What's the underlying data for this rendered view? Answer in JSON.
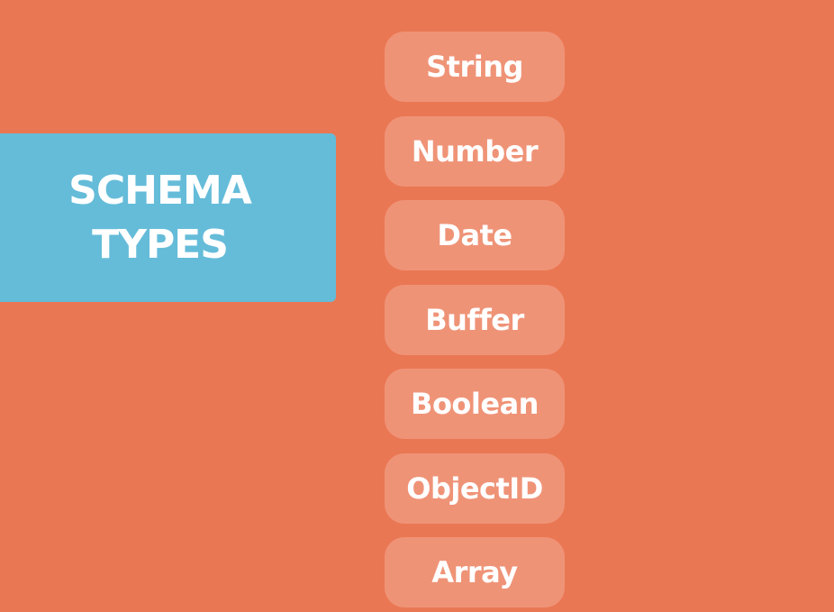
{
  "panel": {
    "line1": "SCHEMA",
    "line2": "TYPES"
  },
  "types": [
    {
      "label": "String",
      "name": "type-string"
    },
    {
      "label": "Number",
      "name": "type-number"
    },
    {
      "label": "Date",
      "name": "type-date"
    },
    {
      "label": "Buffer",
      "name": "type-buffer"
    },
    {
      "label": "Boolean",
      "name": "type-boolean"
    },
    {
      "label": "ObjectID",
      "name": "type-objectid"
    },
    {
      "label": "Array",
      "name": "type-array"
    }
  ],
  "colors": {
    "background": "#EA7753",
    "panel": "#65BCD9",
    "pill": "#EF9377",
    "text": "#FFFFFF"
  }
}
